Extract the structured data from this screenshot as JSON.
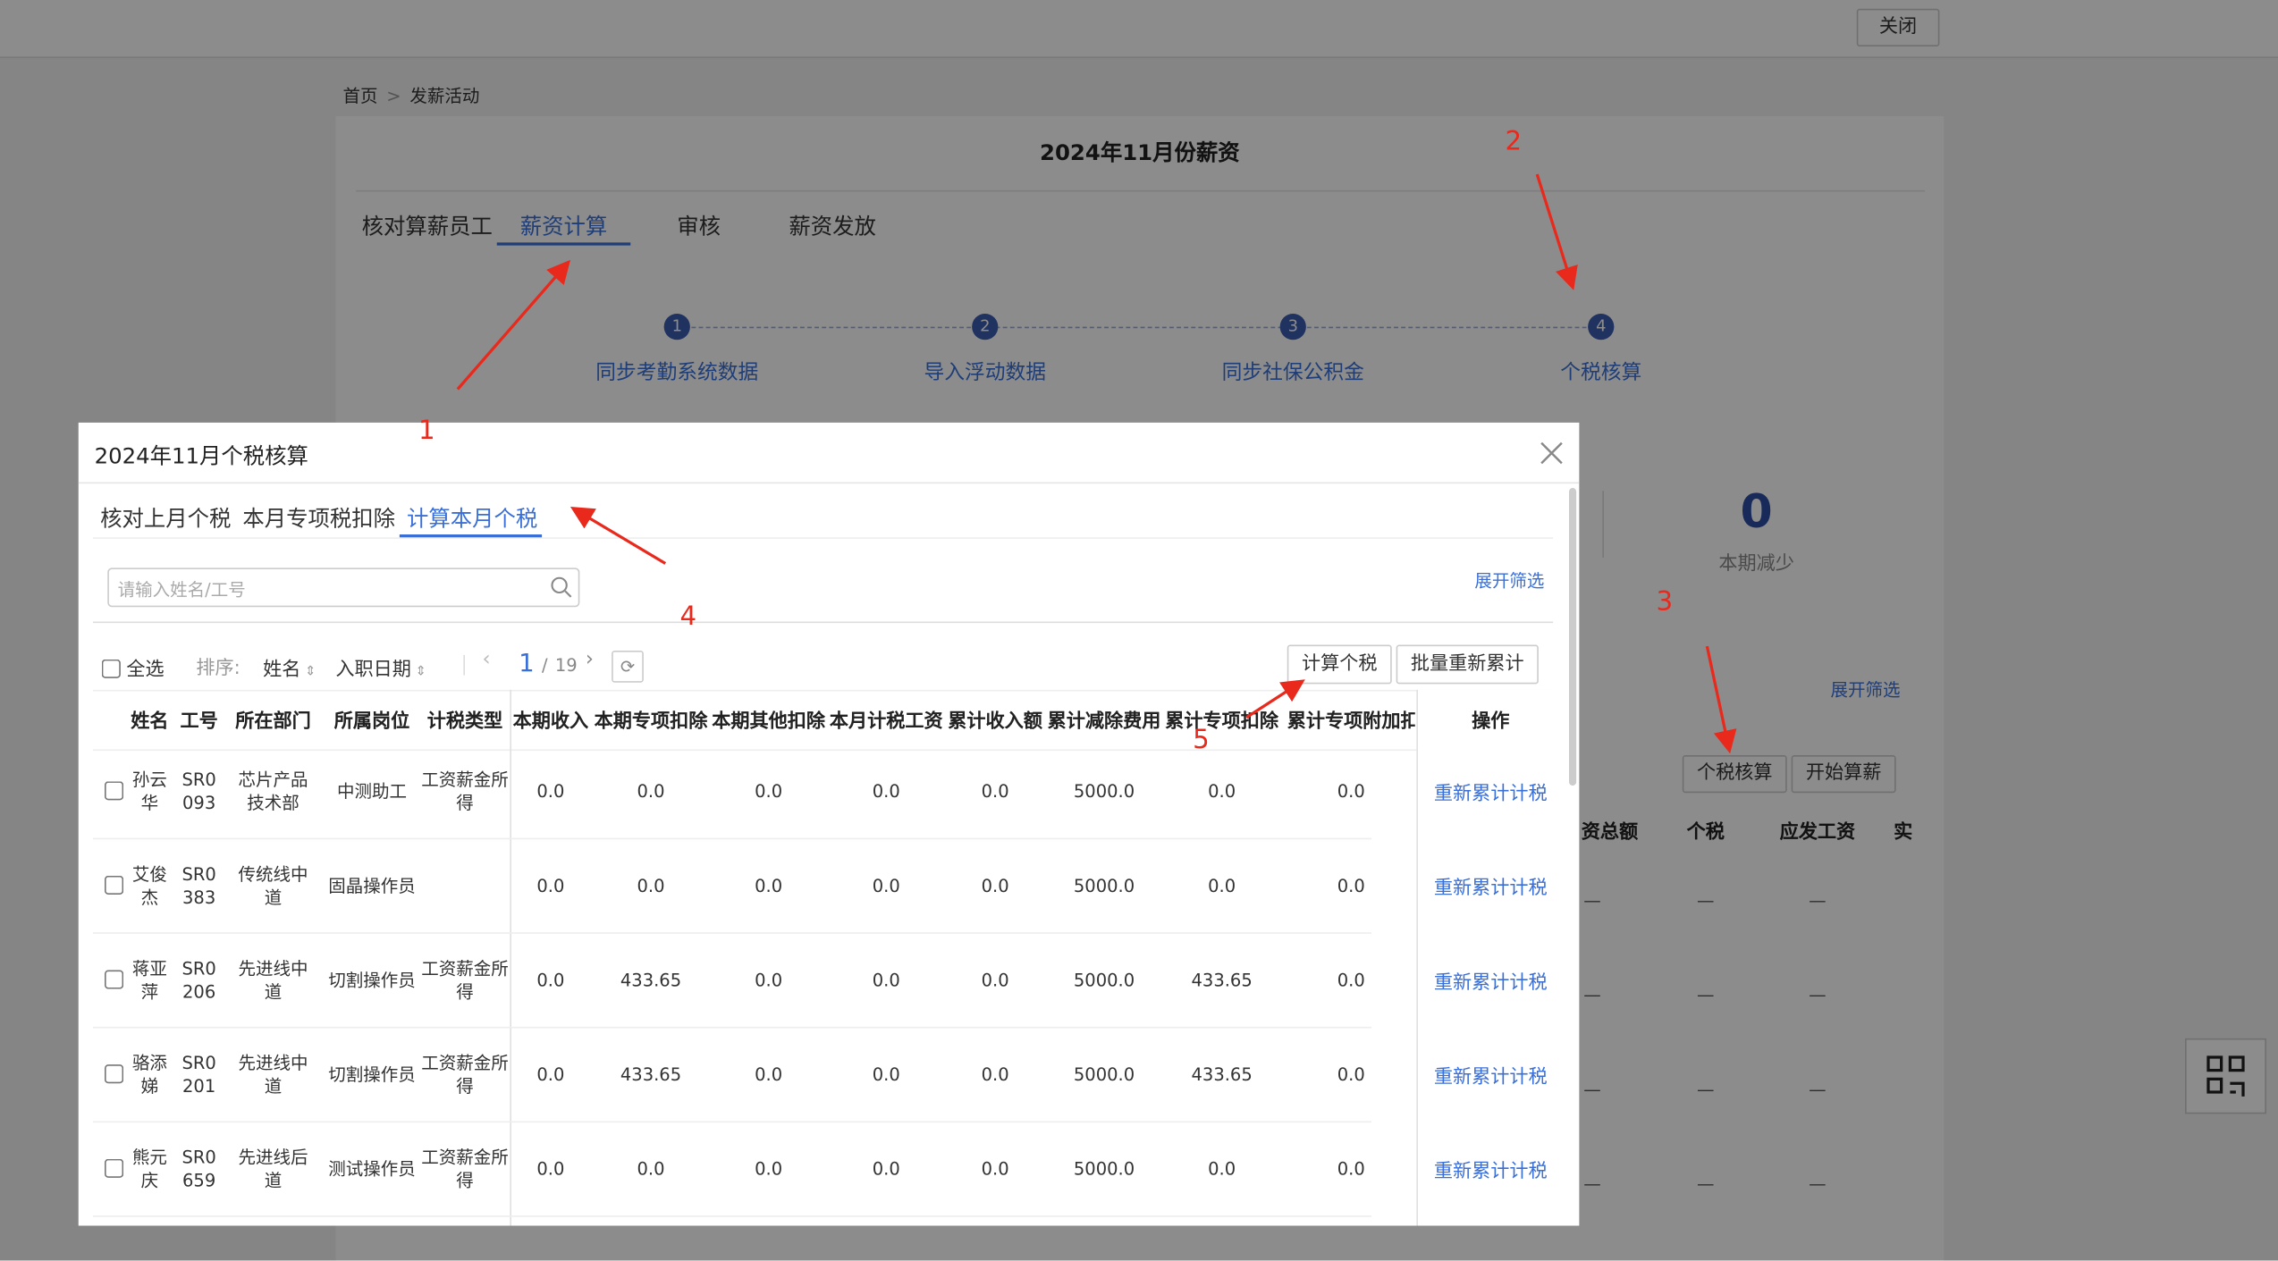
{
  "top_bar": {
    "close_button": "关闭"
  },
  "breadcrumb": [
    "首页",
    "发薪活动"
  ],
  "page_title": "2024年11月份薪资",
  "tabs": [
    "核对算薪员工",
    "薪资计算",
    "审核",
    "薪资发放"
  ],
  "active_tab": 1,
  "steps": [
    {
      "number": 1,
      "label": "同步考勤系统数据"
    },
    {
      "number": 2,
      "label": "导入浮动数据"
    },
    {
      "number": 3,
      "label": "同步社保公积金"
    },
    {
      "number": 4,
      "label": "个税核算"
    }
  ],
  "background": {
    "stat_value": 0,
    "stat_label": "本期减少",
    "expand_filter": "展开筛选",
    "buttons": [
      "个税核算",
      "开始算薪"
    ],
    "columns": [
      "资总额",
      "个税",
      "应发工资",
      "实"
    ],
    "empty_cell": "—"
  },
  "dialog": {
    "title": "2024年11月个税核算",
    "tabs": [
      "核对上月个税",
      "本月专项税扣除",
      "计算本月个税"
    ],
    "active_tab": 2,
    "search_placeholder": "请输入姓名/工号",
    "expand_filter": "展开筛选",
    "select_all": "全选",
    "sort_label": "排序:",
    "sort_options": [
      "姓名",
      "入职日期"
    ],
    "page_current": 1,
    "page_separator": "/",
    "page_total": 19,
    "buttons": [
      "计算个税",
      "批量重新累计"
    ],
    "columns": [
      "姓名",
      "工号",
      "所在部门",
      "所属岗位",
      "计税类型",
      "本期收入",
      "本期专项扣除",
      "本期其他扣除",
      "本月计税工资",
      "累计收入额",
      "累计减除费用",
      "累计专项扣除",
      "累计专项附加扣",
      "操作"
    ],
    "rows": [
      [
        "孙云华",
        "SR0093",
        "芯片产品技术部",
        "中测助工",
        "工资薪金所得",
        "0.0",
        "0.0",
        "0.0",
        "0.0",
        "0.0",
        "5000.0",
        "0.0",
        "0.0"
      ],
      [
        "艾俊杰",
        "SR0383",
        "传统线中道",
        "固晶操作员",
        null,
        "0.0",
        "0.0",
        "0.0",
        "0.0",
        "0.0",
        "5000.0",
        "0.0",
        "0.0"
      ],
      [
        "蒋亚萍",
        "SR0206",
        "先进线中道",
        "切割操作员",
        "工资薪金所得",
        "0.0",
        "433.65",
        "0.0",
        "0.0",
        "0.0",
        "5000.0",
        "433.65",
        "0.0"
      ],
      [
        "骆添娣",
        "SR0201",
        "先进线中道",
        "切割操作员",
        "工资薪金所得",
        "0.0",
        "433.65",
        "0.0",
        "0.0",
        "0.0",
        "5000.0",
        "433.65",
        "0.0"
      ],
      [
        "熊元庆",
        "SR0659",
        "先进线后道",
        "测试操作员",
        "工资薪金所得",
        "0.0",
        "0.0",
        "0.0",
        "0.0",
        "0.0",
        "5000.0",
        "0.0",
        "0.0"
      ]
    ],
    "row_action": "重新累计计税"
  },
  "annotations": [
    "1",
    "2",
    "3",
    "4",
    "5"
  ]
}
